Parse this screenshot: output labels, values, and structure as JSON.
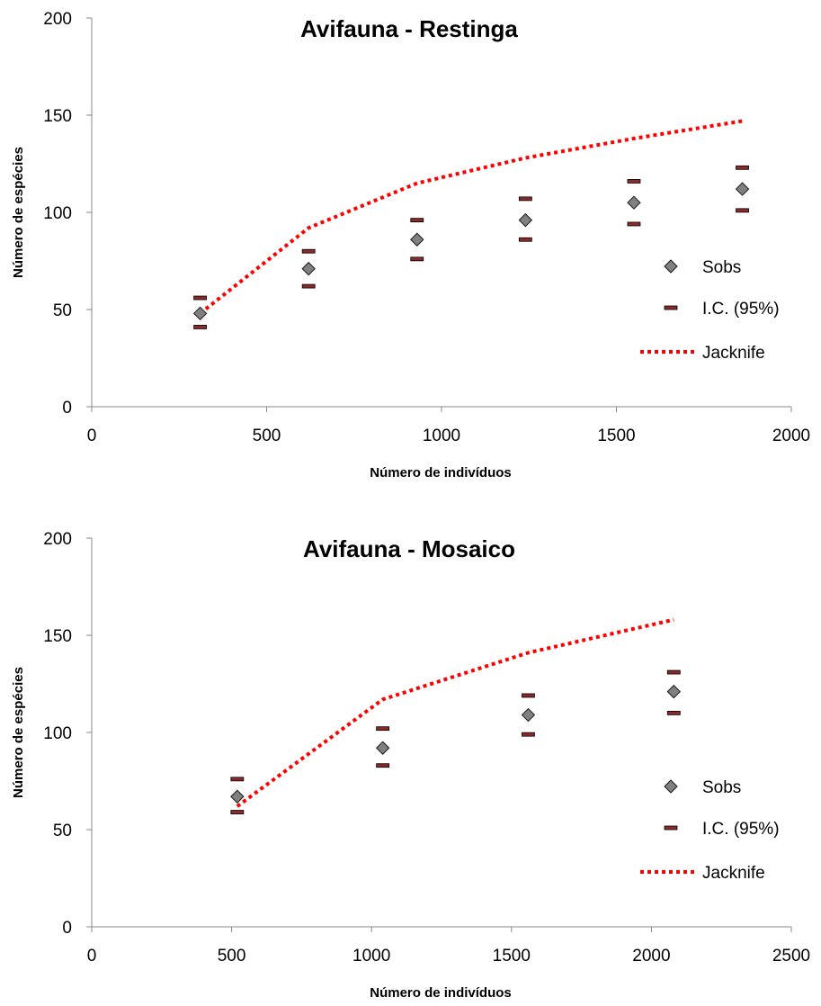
{
  "colors": {
    "marker_fill": "#808080",
    "marker_stroke": "#1a1a1a",
    "ci_fill": "#8b2a2a",
    "ci_stroke": "#000000",
    "jack": "#ff0000",
    "axis": "#888888"
  },
  "chart_data": [
    {
      "type": "scatter",
      "title": "Avifauna - Restinga",
      "xlabel": "Número de indivíduos",
      "ylabel": "Número de espécies",
      "xlim": [
        0,
        2000
      ],
      "ylim": [
        0,
        200
      ],
      "xticks": [
        0,
        500,
        1000,
        1500,
        2000
      ],
      "yticks": [
        0,
        50,
        100,
        150,
        200
      ],
      "grid": false,
      "legend_position": "right",
      "legend": [
        "Sobs",
        "I.C. (95%)",
        "Jacknife"
      ],
      "series": [
        {
          "name": "Sobs",
          "kind": "diamond",
          "x": [
            310,
            620,
            930,
            1240,
            1550,
            1860
          ],
          "y": [
            48,
            71,
            86,
            96,
            105,
            112
          ]
        },
        {
          "name": "I.C. (95%)",
          "kind": "dash",
          "x": [
            310,
            620,
            930,
            1240,
            1550,
            1860,
            310,
            620,
            930,
            1240,
            1550,
            1860
          ],
          "y": [
            56,
            80,
            96,
            107,
            116,
            123,
            41,
            62,
            76,
            86,
            94,
            101
          ]
        },
        {
          "name": "Jacknife",
          "kind": "dotted-line",
          "x": [
            310,
            620,
            930,
            1240,
            1550,
            1860
          ],
          "y": [
            48,
            92,
            115,
            128,
            138,
            147
          ]
        }
      ]
    },
    {
      "type": "scatter",
      "title": "Avifauna - Mosaico",
      "xlabel": "Número de indivíduos",
      "ylabel": "Número de espécies",
      "xlim": [
        0,
        2500
      ],
      "ylim": [
        0,
        200
      ],
      "xticks": [
        0,
        500,
        1000,
        1500,
        2000,
        2500
      ],
      "yticks": [
        0,
        50,
        100,
        150,
        200
      ],
      "grid": false,
      "legend_position": "right",
      "legend": [
        "Sobs",
        "I.C. (95%)",
        "Jacknife"
      ],
      "series": [
        {
          "name": "Sobs",
          "kind": "diamond",
          "x": [
            520,
            1040,
            1560,
            2080
          ],
          "y": [
            67,
            92,
            109,
            121
          ]
        },
        {
          "name": "I.C. (95%)",
          "kind": "dash",
          "x": [
            520,
            1040,
            1560,
            2080,
            520,
            1040,
            1560,
            2080
          ],
          "y": [
            76,
            102,
            119,
            131,
            59,
            83,
            99,
            110
          ]
        },
        {
          "name": "Jacknife",
          "kind": "dotted-line",
          "x": [
            520,
            1040,
            1560,
            2080
          ],
          "y": [
            62,
            117,
            141,
            158
          ]
        }
      ]
    }
  ]
}
